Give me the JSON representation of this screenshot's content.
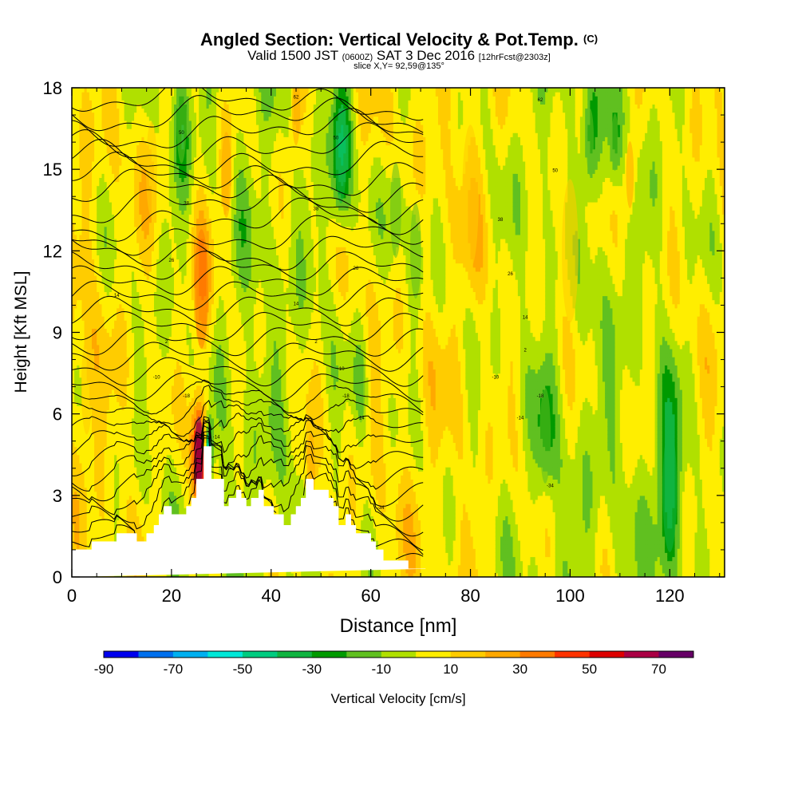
{
  "title": {
    "main": "Angled Section: Vertical Velocity & Pot.Temp.",
    "tag": "(C)",
    "valid_prefix": "Valid 1500 JST",
    "valid_zulu": "(0600Z)",
    "valid_date": "SAT 3 Dec 2016",
    "forecast": "[12hrFcst@2303z]",
    "slice": "slice X,Y= 92,59@135°"
  },
  "chart_data": {
    "type": "heatmap",
    "xlabel": "Distance [nm]",
    "ylabel": "Height [Kft MSL]",
    "xlim": [
      0,
      131
    ],
    "ylim": [
      0,
      18
    ],
    "x_ticks": [
      "0",
      "20",
      "40",
      "60",
      "80",
      "100",
      "120"
    ],
    "y_ticks": [
      "0",
      "3",
      "6",
      "9",
      "12",
      "15",
      "18"
    ],
    "colorbar": {
      "label": "Vertical Velocity [cm/s]",
      "tick_labels": [
        "-90",
        "-70",
        "-50",
        "-30",
        "-10",
        "10",
        "30",
        "50",
        "70"
      ],
      "levels": [
        -90,
        -80,
        -70,
        -60,
        -50,
        -40,
        -30,
        -20,
        -10,
        0,
        10,
        20,
        30,
        40,
        50,
        60,
        70
      ],
      "colors": [
        "#0000ee",
        "#0070ee",
        "#00b0f0",
        "#00e8d8",
        "#00cc80",
        "#10b440",
        "#009a00",
        "#60c020",
        "#b0e000",
        "#ffee00",
        "#ffcc00",
        "#ffa800",
        "#ff7a00",
        "#ff3300",
        "#dd0000",
        "#aa0044",
        "#660066"
      ]
    },
    "features": [
      {
        "x": 26,
        "y": 10.6,
        "w": 2.5,
        "value": 30
      },
      {
        "x": 31,
        "y": 14.8,
        "w": 1.8,
        "value": 25
      },
      {
        "x": 25.5,
        "y": 4.5,
        "w": 1.6,
        "value": 70
      },
      {
        "x": 27.5,
        "y": 4.6,
        "w": 0.8,
        "value": -55
      },
      {
        "x": 22,
        "y": 16.8,
        "w": 1.8,
        "value": -20
      },
      {
        "x": 54,
        "y": 15.5,
        "w": 2.0,
        "value": -40
      },
      {
        "x": 65,
        "y": 13.5,
        "w": 2.0,
        "value": -12
      },
      {
        "x": 69,
        "y": 12.0,
        "w": 2.0,
        "value": -12
      },
      {
        "x": 120,
        "y": 3.2,
        "w": 2.6,
        "value": -35
      },
      {
        "x": 104,
        "y": 16.0,
        "w": 1.4,
        "value": -15
      },
      {
        "x": 109,
        "y": 16.0,
        "w": 1.2,
        "value": -15
      },
      {
        "x": 112,
        "y": 14.8,
        "w": 1.4,
        "value": 25
      },
      {
        "x": 45,
        "y": 17.2,
        "w": 1.5,
        "value": 25
      },
      {
        "x": 48,
        "y": 4.0,
        "w": 1.5,
        "value": 25
      },
      {
        "x": 58,
        "y": 7.0,
        "w": 1.5,
        "value": -12
      },
      {
        "x": 95,
        "y": 5.2,
        "w": 2.0,
        "value": -12
      },
      {
        "x": 16,
        "y": 15.0,
        "w": 2.0,
        "value": 15
      },
      {
        "x": 3,
        "y": 7.0,
        "w": 2.0,
        "value": 15
      },
      {
        "x": 100,
        "y": 12.0,
        "w": 3.0,
        "value": 15
      },
      {
        "x": 80,
        "y": 14.0,
        "w": 3.0,
        "value": 12
      }
    ],
    "isentropes": {
      "series": "Pot.Temp. (C)",
      "levels": [
        -14,
        -10,
        -6,
        -2,
        2,
        6,
        10,
        14,
        18,
        22,
        26,
        30,
        34,
        38,
        42,
        46,
        50,
        54,
        58,
        62,
        66,
        70,
        74,
        78,
        82,
        86,
        90,
        94,
        98,
        102,
        106,
        110
      ],
      "labels": [
        {
          "text": "62",
          "x": 45,
          "y": 17.6
        },
        {
          "text": "62",
          "x": 94,
          "y": 17.5
        },
        {
          "text": "50",
          "x": 22,
          "y": 16.3
        },
        {
          "text": "50",
          "x": 53,
          "y": 16.1
        },
        {
          "text": "50",
          "x": 97,
          "y": 14.9
        },
        {
          "text": "38",
          "x": 23,
          "y": 13.7
        },
        {
          "text": "38",
          "x": 49,
          "y": 13.5
        },
        {
          "text": "38",
          "x": 86,
          "y": 13.1
        },
        {
          "text": "26",
          "x": 20,
          "y": 11.6
        },
        {
          "text": "26",
          "x": 57,
          "y": 11.3
        },
        {
          "text": "26",
          "x": 88,
          "y": 11.1
        },
        {
          "text": "14",
          "x": 9,
          "y": 10.3
        },
        {
          "text": "14",
          "x": 45,
          "y": 10.0
        },
        {
          "text": "14",
          "x": 91,
          "y": 9.5
        },
        {
          "text": "2",
          "x": 19,
          "y": 8.6
        },
        {
          "text": "2",
          "x": 49,
          "y": 8.6
        },
        {
          "text": "2",
          "x": 91,
          "y": 8.3
        },
        {
          "text": "-10",
          "x": 17,
          "y": 7.3
        },
        {
          "text": "-10",
          "x": 54,
          "y": 7.6
        },
        {
          "text": "-10",
          "x": 85,
          "y": 7.3
        },
        {
          "text": "-18",
          "x": 23,
          "y": 6.6
        },
        {
          "text": "-18",
          "x": 55,
          "y": 6.6
        },
        {
          "text": "-18",
          "x": 94,
          "y": 6.6
        },
        {
          "text": "-14",
          "x": 58,
          "y": 5.8
        },
        {
          "text": "-14",
          "x": 90,
          "y": 5.8
        },
        {
          "text": "-14",
          "x": 29,
          "y": 5.1
        },
        {
          "text": "-34",
          "x": 96,
          "y": 3.3
        },
        {
          "text": "-34",
          "x": 62,
          "y": 2.5
        }
      ]
    },
    "terrain": {
      "x": [
        0,
        4,
        4,
        9,
        9,
        13,
        13,
        15,
        15,
        16.5,
        16.5,
        17.5,
        17.5,
        18.5,
        18.5,
        20,
        20,
        23,
        23,
        24,
        24,
        25,
        25,
        26.5,
        26.5,
        28,
        28,
        30.5,
        30.5,
        31.5,
        31.5,
        33,
        33,
        34,
        34,
        35,
        35,
        36,
        36,
        37.5,
        37.5,
        38.5,
        38.5,
        40.5,
        40.5,
        42.5,
        42.5,
        44,
        44,
        45,
        45,
        46,
        46,
        47,
        47,
        48.5,
        48.5,
        51.5,
        51.5,
        52.5,
        52.5,
        53.5,
        53.5,
        55,
        55,
        56,
        56,
        57,
        57,
        60,
        60,
        61,
        61,
        62.5,
        62.5,
        67.5,
        67.5,
        71,
        71,
        131
      ],
      "y": [
        1.0,
        1.0,
        1.3,
        1.3,
        1.6,
        1.6,
        1.3,
        1.3,
        1.6,
        1.6,
        1.9,
        1.9,
        2.3,
        2.3,
        2.6,
        2.6,
        2.3,
        2.3,
        2.6,
        2.6,
        2.9,
        2.9,
        3.6,
        3.6,
        4.8,
        4.8,
        3.6,
        3.6,
        2.6,
        2.6,
        2.9,
        2.9,
        3.2,
        3.2,
        2.9,
        2.9,
        2.6,
        2.6,
        2.9,
        2.9,
        3.2,
        3.2,
        2.6,
        2.6,
        2.3,
        2.3,
        1.9,
        1.9,
        2.3,
        2.3,
        2.6,
        2.6,
        2.9,
        2.9,
        3.6,
        3.6,
        3.2,
        3.2,
        2.9,
        2.9,
        2.6,
        2.6,
        1.9,
        1.9,
        2.3,
        2.3,
        1.9,
        1.9,
        1.6,
        1.6,
        1.3,
        1.3,
        1.0,
        1.0,
        0.6,
        0.6,
        0.3,
        0.3
      ]
    }
  }
}
